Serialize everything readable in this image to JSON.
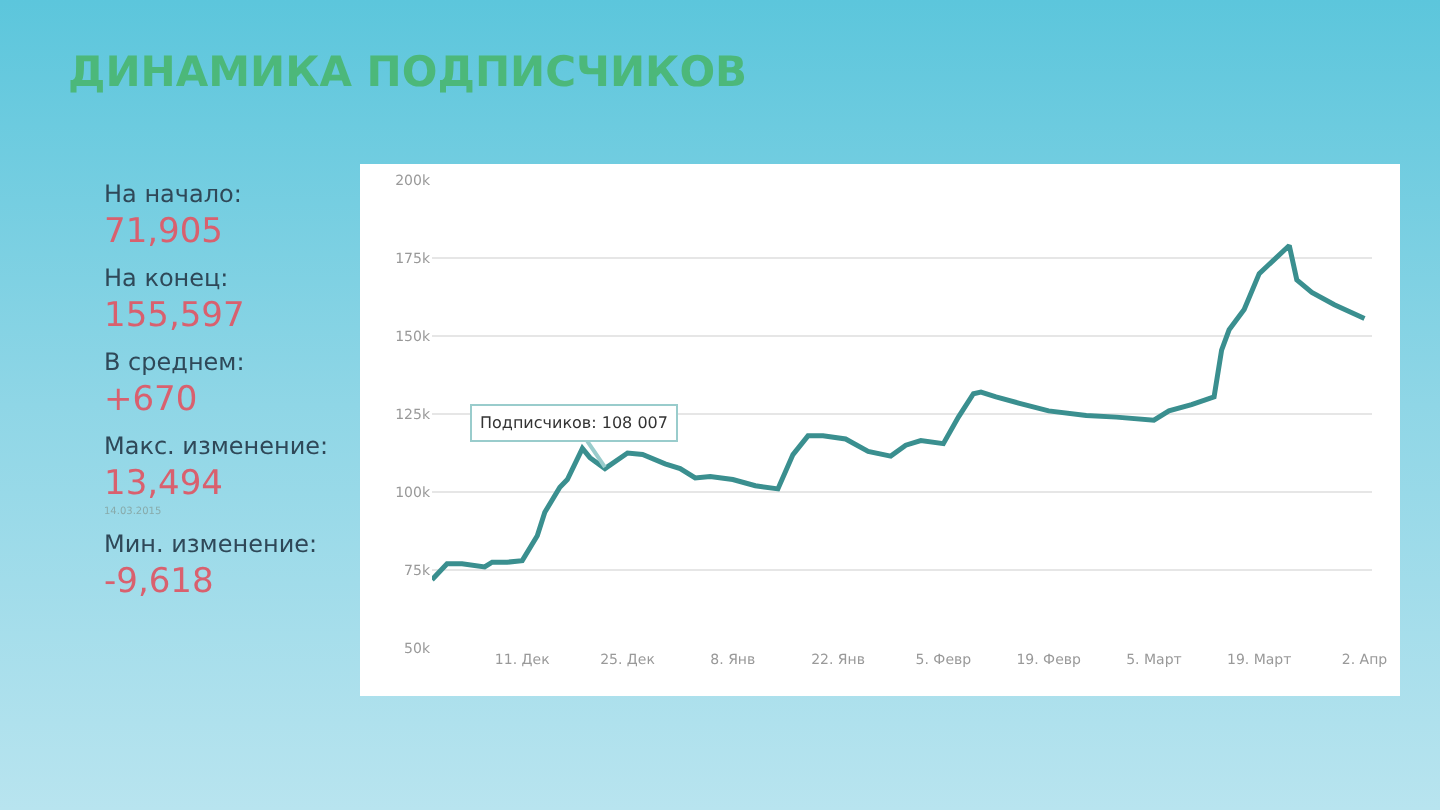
{
  "chart_data": {
    "type": "line",
    "title": "ДИНАМИКА ПОДПИСЧИКОВ",
    "annotations": [
      "На начало:",
      "71,905",
      "На конец:",
      "155,597",
      "В среднем:",
      "+670",
      "Макс. изменение:",
      "13,494",
      "14.03.2015",
      "Мин. изменение:",
      "-9,618",
      {
        "text": "Подписчиков: 108 007",
        "x": "2014-12-22",
        "y": 108007
      }
    ],
    "x": [
      "2014-11-29",
      "2014-12-01",
      "2014-12-03",
      "2014-12-06",
      "2014-12-07",
      "2014-12-09",
      "2014-12-11",
      "2014-12-13",
      "2014-12-14",
      "2014-12-16",
      "2014-12-17",
      "2014-12-19",
      "2014-12-20",
      "2014-12-22",
      "2014-12-25",
      "2014-12-27",
      "2014-12-30",
      "2015-01-01",
      "2015-01-03",
      "2015-01-05",
      "2015-01-08",
      "2015-01-11",
      "2015-01-14",
      "2015-01-16",
      "2015-01-18",
      "2015-01-20",
      "2015-01-23",
      "2015-01-26",
      "2015-01-29",
      "2015-01-31",
      "2015-02-02",
      "2015-02-05",
      "2015-02-07",
      "2015-02-09",
      "2015-02-10",
      "2015-02-12",
      "2015-02-15",
      "2015-02-19",
      "2015-02-24",
      "2015-02-28",
      "2015-03-05",
      "2015-03-07",
      "2015-03-10",
      "2015-03-13",
      "2015-03-14",
      "2015-03-15",
      "2015-03-17",
      "2015-03-19",
      "2015-03-21",
      "2015-03-23",
      "2015-03-24",
      "2015-03-26",
      "2015-03-29",
      "2015-04-02"
    ],
    "series": [
      {
        "color": "#3a8f8f",
        "values": [
          71905,
          77000,
          77000,
          76000,
          77500,
          77500,
          78000,
          86000,
          93500,
          101500,
          104000,
          114000,
          111000,
          107500,
          112500,
          112000,
          109000,
          107500,
          104500,
          105000,
          104000,
          102000,
          101000,
          112000,
          118000,
          118000,
          117000,
          113000,
          111500,
          115000,
          116500,
          115500,
          124000,
          131500,
          132000,
          130500,
          128500,
          126000,
          124500,
          124000,
          123000,
          126000,
          128000,
          130500,
          145500,
          152000,
          158500,
          170000,
          174500,
          179000,
          168000,
          164000,
          160000,
          155597
        ]
      }
    ],
    "xlim": [
      "2014-11-29",
      "2015-04-03"
    ],
    "xticks": [
      {
        "value": "2014-12-11",
        "label": "11. Дек"
      },
      {
        "value": "2014-12-25",
        "label": "25. Дек"
      },
      {
        "value": "2015-01-08",
        "label": "8. Янв"
      },
      {
        "value": "2015-01-22",
        "label": "22. Янв"
      },
      {
        "value": "2015-02-05",
        "label": "5. Февр"
      },
      {
        "value": "2015-02-19",
        "label": "19. Февр"
      },
      {
        "value": "2015-03-05",
        "label": "5. Март"
      },
      {
        "value": "2015-03-19",
        "label": "19. Март"
      },
      {
        "value": "2015-04-02",
        "label": "2. Апр"
      }
    ],
    "ylim": [
      50000,
      200000
    ],
    "yticks": [
      {
        "value": 50000,
        "label": "50k"
      },
      {
        "value": 75000,
        "label": "75k"
      },
      {
        "value": 100000,
        "label": "100k"
      },
      {
        "value": 125000,
        "label": "125k"
      },
      {
        "value": 150000,
        "label": "150k"
      },
      {
        "value": 175000,
        "label": "175k"
      },
      {
        "value": 200000,
        "label": "200k"
      }
    ],
    "grid": "y",
    "legend": false,
    "marker": "none",
    "line_style": "solid"
  }
}
